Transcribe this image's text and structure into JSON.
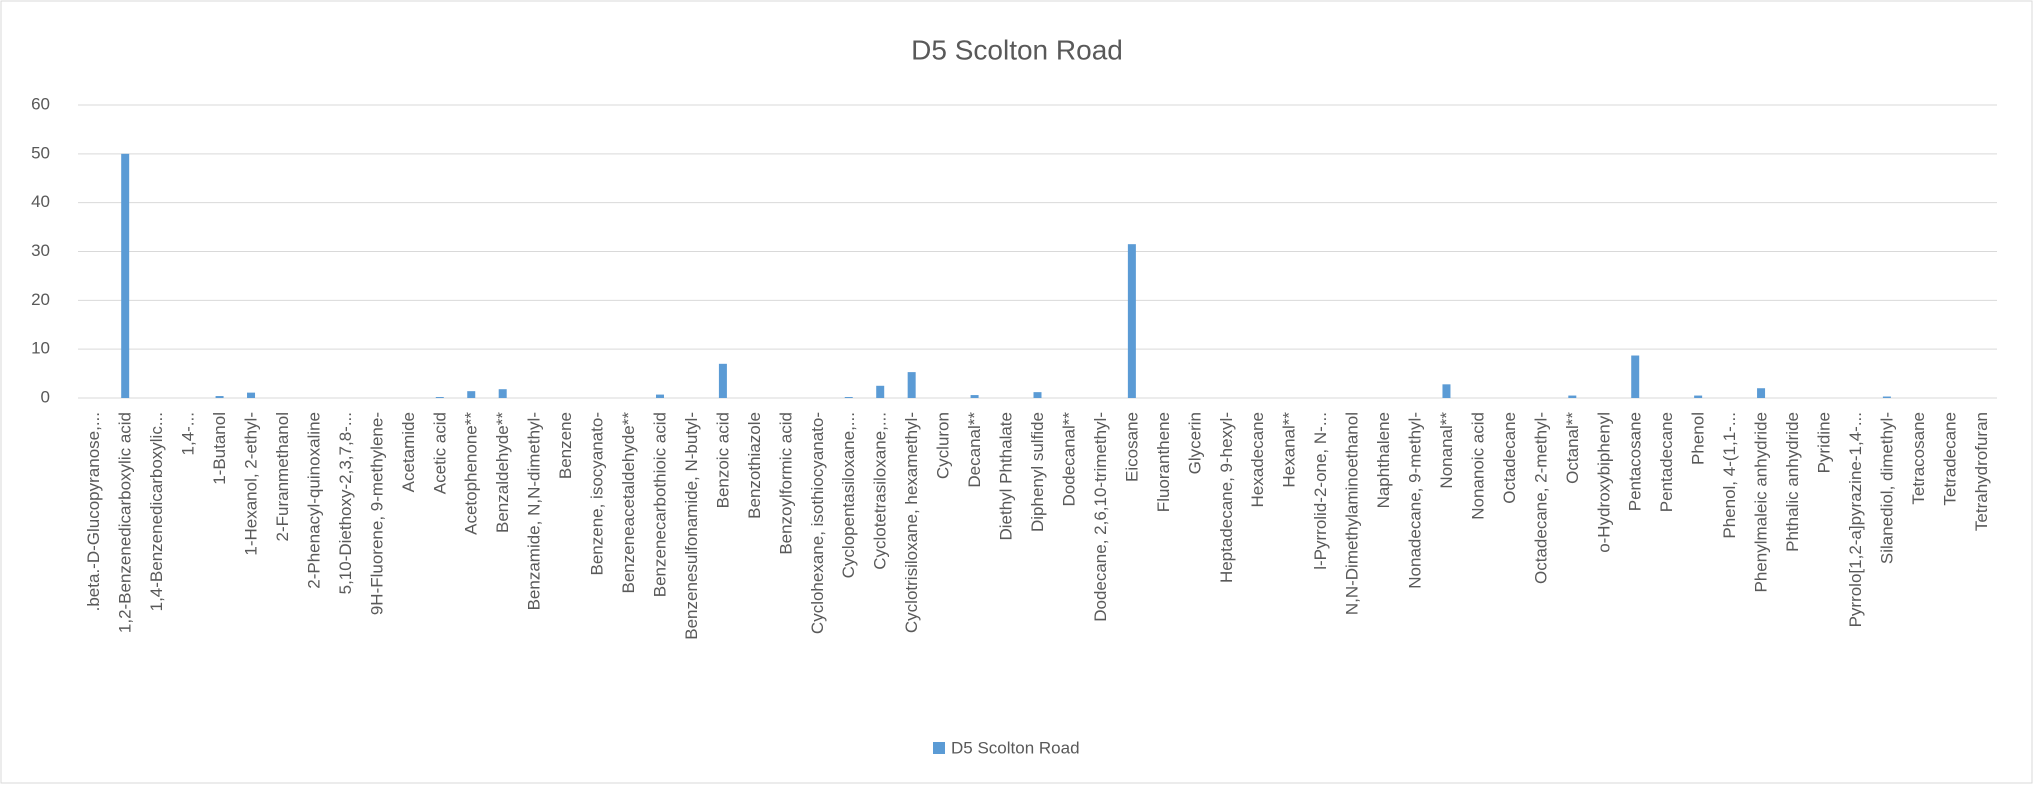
{
  "chart_data": {
    "type": "bar",
    "title": "D5 Scolton Road",
    "categories": [
      ".beta.-D-Glucopyranose,...",
      "1,2-Benzenedicarboxylic acid",
      "1,4-Benzenedicarboxylic...",
      "1,4-...",
      "1-Butanol",
      "1-Hexanol, 2-ethyl-",
      "2-Furanmethanol",
      "2-Phenacyl-quinoxaline",
      "5,10-Diethoxy-2,3,7,8-...",
      "9H-Fluorene, 9-methylene-",
      "Acetamide",
      "Acetic acid",
      "Acetophenone**",
      "Benzaldehyde**",
      "Benzamide, N,N-dimethyl-",
      "Benzene",
      "Benzene, isocyanato-",
      "Benzeneacetaldehyde**",
      "Benzenecarbothioic acid",
      "Benzenesulfonamide, N-butyl-",
      "Benzoic acid",
      "Benzothiazole",
      "Benzoylformic acid",
      "Cyclohexane, isothiocyanato-",
      "Cyclopentasiloxane,...",
      "Cyclotetrasiloxane,...",
      "Cyclotrisiloxane, hexamethyl-",
      "Cycluron",
      "Decanal**",
      "Diethyl Phthalate",
      "Diphenyl sulfide",
      "Dodecanal**",
      "Dodecane, 2,6,10-trimethyl-",
      "Eicosane",
      "Fluoranthene",
      "Glycerin",
      "Heptadecane, 9-hexyl-",
      "Hexadecane",
      "Hexanal**",
      "l-Pyrrolid-2-one, N-...",
      "N,N-Dimethylaminoethanol",
      "Naphthalene",
      "Nonadecane, 9-methyl-",
      "Nonanal**",
      "Nonanoic acid",
      "Octadecane",
      "Octadecane, 2-methyl-",
      "Octanal**",
      "o-Hydroxybiphenyl",
      "Pentacosane",
      "Pentadecane",
      "Phenol",
      "Phenol, 4-(1,1-...",
      "Phenylmaleic anhydride",
      "Phthalic anhydride",
      "Pyridine",
      "Pyrrolo[1,2-a]pyrazine-1,4-...",
      "Silanediol, dimethyl-",
      "Tetracosane",
      "Tetradecane",
      "Tetrahydrofuran"
    ],
    "series": [
      {
        "name": "D5 Scolton Road",
        "color": "#5b9bd5",
        "values": [
          0,
          50,
          0,
          0,
          0.4,
          1.1,
          0,
          0,
          0,
          0,
          0,
          0.2,
          1.4,
          1.8,
          0,
          0,
          0,
          0,
          0.7,
          0,
          7,
          0,
          0,
          0,
          0.2,
          2.5,
          5.3,
          0,
          0.6,
          0,
          1.2,
          0,
          0,
          31.5,
          0,
          0,
          0,
          0,
          0,
          0,
          0,
          0,
          0,
          2.8,
          0,
          0,
          0,
          0.5,
          0,
          8.7,
          0,
          0.5,
          0,
          2,
          0,
          0,
          0,
          0.3,
          0,
          0,
          0
        ]
      }
    ],
    "ylim": [
      0,
      60
    ],
    "yticks": [
      0,
      10,
      20,
      30,
      40,
      50,
      60
    ],
    "grid": true,
    "legend": "bottom"
  }
}
